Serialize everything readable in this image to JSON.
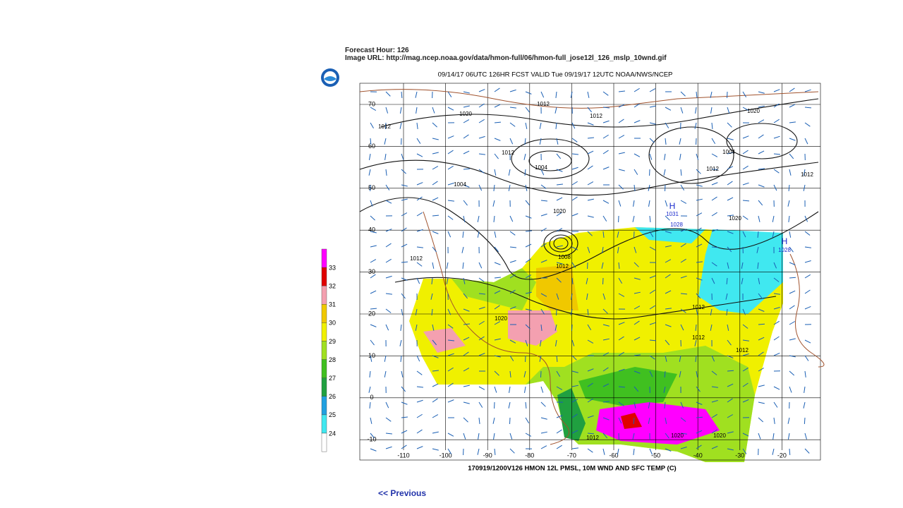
{
  "header": {
    "forecast_hour": "Forecast Hour: 126",
    "image_url": "Image URL: http://mag.ncep.noaa.gov/data/hmon-full/06/hmon-full_jose12l_126_mslp_10wnd.gif"
  },
  "map": {
    "title": "09/14/17 06UTC  126HR  FCST VALID Tue 09/19/17 12UTC  NOAA/NWS/NCEP",
    "lat_labels": [
      "70",
      "60",
      "50",
      "40",
      "30",
      "20",
      "10",
      "0",
      "-10"
    ],
    "lon_labels": [
      "-110",
      "-100",
      "-90",
      "-80",
      "-70",
      "-60",
      "-50",
      "-40",
      "-30",
      "-20"
    ],
    "contour_labels": [
      "1020",
      "1012",
      "1004",
      "1012",
      "1012",
      "1004",
      "1020",
      "1012",
      "1020",
      "1004",
      "1012",
      "1012",
      "H",
      "1031",
      "1028",
      "1020",
      "H",
      "1028",
      "1008",
      "1012",
      "1012",
      "1020",
      "1012",
      "1012",
      "1012",
      "1020",
      "1020",
      "1012"
    ],
    "caption": "170919/1200V126 HMON 12L PMSL, 10M WND AND SFC TEMP (C)"
  },
  "colorbar": {
    "labels": [
      "33",
      "32",
      "31",
      "30",
      "29",
      "28",
      "27",
      "26",
      "25",
      "24"
    ],
    "colors": [
      "#ff00ff",
      "#e00000",
      "#f4a0b0",
      "#f0c800",
      "#f0f000",
      "#a0e020",
      "#40c020",
      "#20a040",
      "#20a0e0",
      "#40e8f0",
      "#ffffff"
    ]
  },
  "nav": {
    "previous": "<< Previous"
  }
}
